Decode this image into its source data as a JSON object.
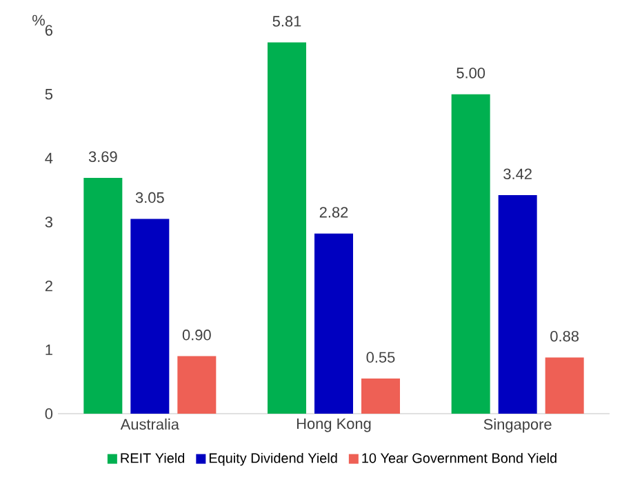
{
  "chart_data": {
    "type": "bar",
    "ylabel": "%",
    "categories": [
      "Australia",
      "Hong Kong",
      "Singapore"
    ],
    "series": [
      {
        "name": "REIT Yield",
        "color": "#00b050",
        "values": [
          3.69,
          5.81,
          5.0
        ],
        "value_labels": [
          "3.69",
          "5.81",
          "5.00"
        ]
      },
      {
        "name": "Equity Dividend Yield",
        "color": "#0000c0",
        "values": [
          3.05,
          2.82,
          3.42
        ],
        "value_labels": [
          "3.05",
          "2.82",
          "3.42"
        ]
      },
      {
        "name": "10 Year Government Bond Yield",
        "color": "#ee6055",
        "values": [
          0.9,
          0.55,
          0.88
        ],
        "value_labels": [
          "0.90",
          "0.55",
          "0.88"
        ]
      }
    ],
    "ylim": [
      0,
      6
    ],
    "yticks": [
      0,
      1,
      2,
      3,
      4,
      5,
      6
    ],
    "legend": "bottom"
  }
}
